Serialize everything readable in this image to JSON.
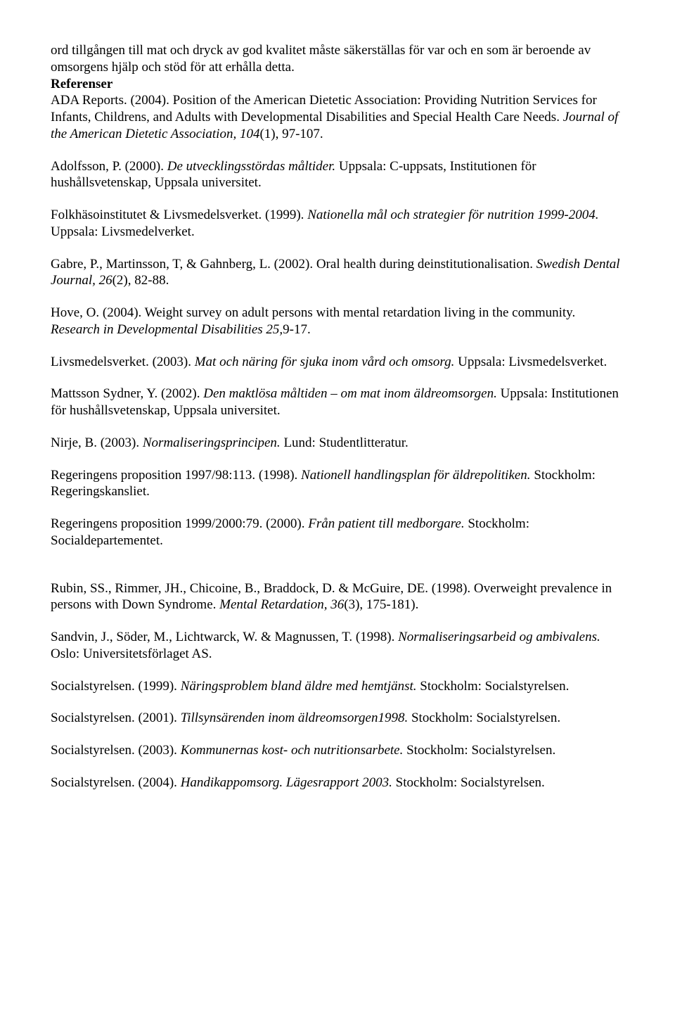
{
  "intro": {
    "line1": "ord tillgången till mat och dryck av god kvalitet måste säkerställas för var och en som är beroende av omsorgens hjälp och stöd för att erhålla detta.",
    "header": "Referenser",
    "ref1a": "ADA Reports. (2004). Position of the American Dietetic Association: Providing Nutrition Services for Infants, Childrens, and Adults with Developmental Disabilities and Special Health Care Needs. ",
    "ref1b": "Journal of the American Dietetic Association, 104",
    "ref1c": "(1), 97-107."
  },
  "refs": [
    {
      "a": "Adolfsson, P. (2000). ",
      "b": "De utvecklingsstördas måltider. ",
      "c": "Uppsala: C-uppsats, Institutionen för hushållsvetenskap, Uppsala universitet."
    },
    {
      "a": "Folkhäsoinstitutet & Livsmedelsverket. (1999). ",
      "b": "Nationella mål och strategier för nutrition 1999-2004. ",
      "c": "Uppsala: Livsmedelverket."
    },
    {
      "a": "Gabre, P., Martinsson, T, & Gahnberg, L. (2002). Oral health during deinstitutionalisation. ",
      "b": "Swedish Dental Journal, 26",
      "c": "(2), 82-88."
    },
    {
      "a": "Hove, O. (2004). Weight survey on adult persons with mental retardation living in the community. ",
      "b": "Research in Developmental Disabilities 25,",
      "c": "9-17."
    },
    {
      "a": "Livsmedelsverket. (2003). ",
      "b": "Mat och näring för sjuka inom vård och omsorg. ",
      "c": "Uppsala: Livsmedelsverket."
    },
    {
      "a": "Mattsson Sydner, Y. (2002). ",
      "b": "Den maktlösa måltiden – om mat inom äldreomsorgen. ",
      "c": "Uppsala: Institutionen för hushållsvetenskap, Uppsala universitet."
    },
    {
      "a": "Nirje, B. (2003). ",
      "b": "Normaliseringsprincipen. ",
      "c": "Lund: Studentlitteratur."
    },
    {
      "a": "Regeringens proposition 1997/98:113. (1998). ",
      "b": "Nationell handlingsplan för äldrepolitiken. ",
      "c": "Stockholm: Regeringskansliet."
    },
    {
      "a": "Regeringens proposition 1999/2000:79. (2000). ",
      "b": "Från patient till medborgare. ",
      "c": "Stockholm: Socialdepartementet."
    }
  ],
  "gap": true,
  "refs2": [
    {
      "a": "Rubin, SS., Rimmer, JH., Chicoine, B., Braddock, D. & McGuire, DE. (1998). Overweight prevalence in persons with Down Syndrome. ",
      "b": "Mental Retardation, 36",
      "c": "(3), 175-181)."
    },
    {
      "a": "Sandvin, J., Söder, M., Lichtwarck, W. & Magnussen, T. (1998). ",
      "b": "Normaliseringsarbeid og ambivalens. ",
      "c": "Oslo: Universitetsförlaget AS."
    },
    {
      "a": "Socialstyrelsen. (1999). ",
      "b": "Näringsproblem bland äldre med hemtjänst. ",
      "c": "Stockholm: Socialstyrelsen."
    },
    {
      "a": "Socialstyrelsen. (2001). ",
      "b": "Tillsynsärenden inom äldreomsorgen1998. ",
      "c": "Stockholm: Socialstyrelsen."
    },
    {
      "a": "Socialstyrelsen. (2003). ",
      "b": "Kommunernas kost- och nutritionsarbete. ",
      "c": "Stockholm: Socialstyrelsen."
    },
    {
      "a": "Socialstyrelsen. (2004). ",
      "b": "Handikappomsorg. Lägesrapport 2003. ",
      "c": "Stockholm: Socialstyrelsen."
    }
  ]
}
